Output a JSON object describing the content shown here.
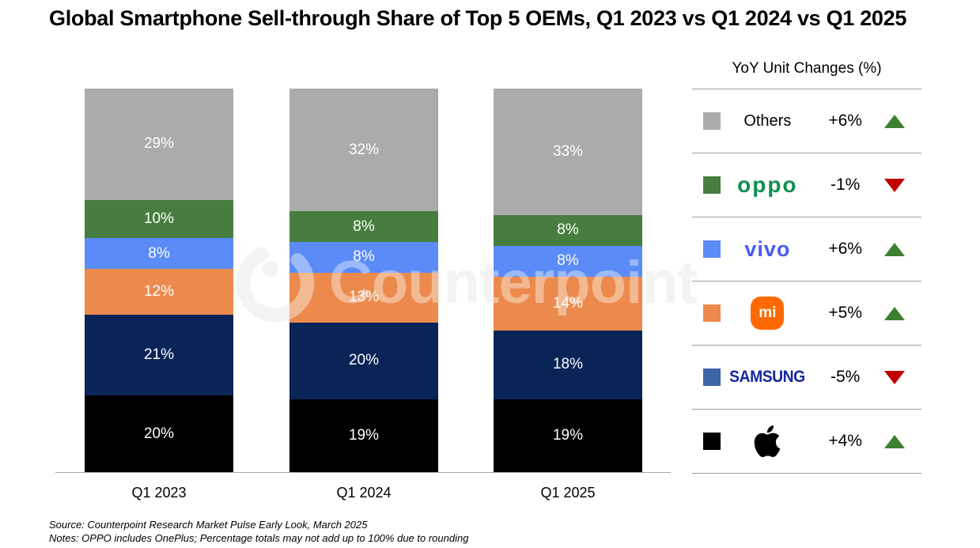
{
  "title": "Global Smartphone Sell-through Share of Top 5 OEMs, Q1 2023 vs Q1 2024 vs Q1 2025",
  "watermark": {
    "text": "Counterpoint"
  },
  "chart_data": {
    "type": "bar",
    "stacked": true,
    "title": "Global Smartphone Sell-through Share of Top 5 OEMs, Q1 2023 vs Q1 2024 vs Q1 2025",
    "categories": [
      "Q1 2023",
      "Q1 2024",
      "Q1 2025"
    ],
    "series": [
      {
        "name": "Apple",
        "color": "#000000",
        "values": [
          20,
          19,
          19
        ],
        "labels": [
          "20%",
          "19%",
          "19%"
        ]
      },
      {
        "name": "Samsung",
        "color": "#0A2458",
        "values": [
          21,
          20,
          18
        ],
        "labels": [
          "21%",
          "20%",
          "18%"
        ]
      },
      {
        "name": "Xiaomi",
        "color": "#EB8A4C",
        "values": [
          12,
          13,
          14
        ],
        "labels": [
          "12%",
          "13%",
          "14%"
        ]
      },
      {
        "name": "vivo",
        "color": "#5A8BF7",
        "values": [
          8,
          8,
          8
        ],
        "labels": [
          "8%",
          "8%",
          "8%"
        ]
      },
      {
        "name": "OPPO",
        "color": "#477E40",
        "values": [
          10,
          8,
          8
        ],
        "labels": [
          "10%",
          "8%",
          "8%"
        ]
      },
      {
        "name": "Others",
        "color": "#ABABAB",
        "values": [
          29,
          32,
          33
        ],
        "labels": [
          "29%",
          "32%",
          "33%"
        ]
      }
    ],
    "ylim": [
      0,
      100
    ],
    "value_suffix": "%",
    "legend_position": "right",
    "grid": false
  },
  "legend": {
    "title": "YoY Unit Changes (%)",
    "up_color": "#3E8031",
    "down_color": "#C00000",
    "rows": [
      {
        "name": "Others",
        "swatch": "#ABABAB",
        "logo_type": "others",
        "logo_text": "Others",
        "change": "+6%",
        "direction": "up"
      },
      {
        "name": "OPPO",
        "swatch": "#477E40",
        "logo_type": "oppo",
        "logo_text": "oppo",
        "change": "-1%",
        "direction": "down"
      },
      {
        "name": "vivo",
        "swatch": "#5A8BF7",
        "logo_type": "vivo",
        "logo_text": "vivo",
        "change": "+6%",
        "direction": "up"
      },
      {
        "name": "Xiaomi",
        "swatch": "#EB8A4C",
        "logo_type": "xiaomi",
        "logo_text": "mi",
        "change": "+5%",
        "direction": "up"
      },
      {
        "name": "Samsung",
        "swatch": "#3D64A8",
        "logo_type": "samsung",
        "logo_text": "SAMSUNG",
        "change": "-5%",
        "direction": "down"
      },
      {
        "name": "Apple",
        "swatch": "#000000",
        "logo_type": "apple",
        "logo_text": "",
        "change": "+4%",
        "direction": "up"
      }
    ]
  },
  "footer": {
    "source": "Source: Counterpoint Research Market Pulse Early Look, March 2025",
    "notes": "Notes: OPPO includes OnePlus; Percentage totals may not add up to 100% due to rounding"
  }
}
